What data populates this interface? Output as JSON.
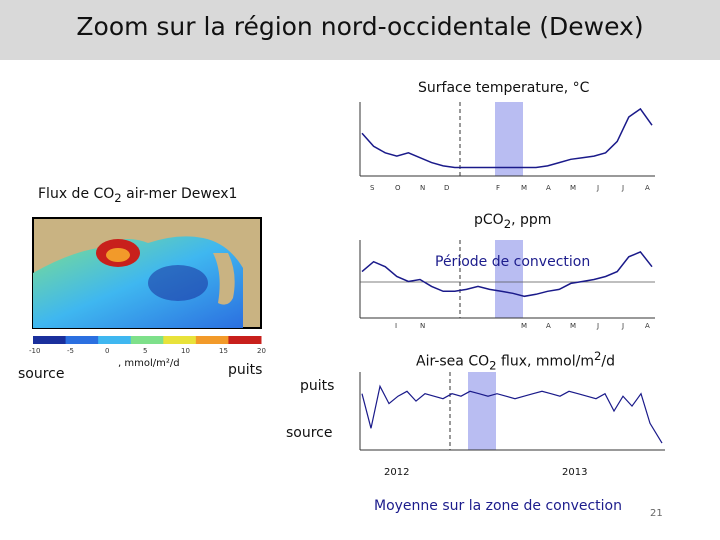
{
  "slide": {
    "title": "Zoom sur la région nord-occidentale (Dewex)",
    "page_number": "21"
  },
  "labels": {
    "sst_title": "Surface temperature, °C",
    "map_title_pre": "Flux de CO",
    "map_title_sub": "2",
    "map_title_post": " air-mer Dewex1",
    "pco2_title_pre": "pCO",
    "pco2_title_sub": "2",
    "pco2_title_post": ", ppm",
    "convection_label": "Période de convection",
    "flux_title_pre": "Air-sea CO",
    "flux_title_sub": "2",
    "flux_title_mid": " flux, mmol/m",
    "flux_title_sup": "2",
    "flux_title_post": "/d",
    "source_left": "source",
    "colorbar_unit": ", mmol/m²/d",
    "puits_left": "puits",
    "puits_mid": "puits",
    "source_mid": "source",
    "year_2012": "2012",
    "year_2013": "2013",
    "footer": "Moyenne sur la zone de convection"
  },
  "colors": {
    "series": "#1a1a8a",
    "convection_band": "#b9bdf2",
    "title_bar": "#d9d9d9",
    "footer_text": "#1c1c8c"
  },
  "chart_data": [
    {
      "type": "line",
      "name": "sst",
      "x": [
        0,
        4,
        8,
        12,
        16,
        20,
        24,
        28,
        32,
        36,
        40,
        44,
        48,
        52,
        56,
        60,
        64,
        68,
        72,
        76,
        80,
        84,
        88,
        92,
        96,
        100
      ],
      "values": [
        15,
        14.2,
        13.8,
        13.6,
        13.8,
        13.5,
        13.2,
        13.0,
        12.9,
        12.9,
        12.9,
        12.9,
        12.9,
        12.9,
        12.9,
        12.9,
        13.0,
        13.2,
        13.4,
        13.5,
        13.6,
        13.8,
        14.5,
        16.0,
        16.5,
        15.5
      ],
      "ylim": [
        12.5,
        16.8
      ],
      "band": [
        53,
        62
      ],
      "dashed_x": 34
    },
    {
      "type": "line",
      "name": "pco2",
      "x": [
        0,
        4,
        8,
        12,
        16,
        20,
        24,
        28,
        32,
        36,
        40,
        44,
        48,
        52,
        56,
        60,
        64,
        68,
        72,
        76,
        80,
        84,
        88,
        92,
        96,
        100
      ],
      "values": [
        420,
        430,
        425,
        415,
        410,
        412,
        405,
        400,
        400,
        402,
        405,
        402,
        400,
        398,
        395,
        397,
        400,
        402,
        408,
        410,
        412,
        415,
        420,
        435,
        440,
        425
      ],
      "ylim": [
        375,
        450
      ],
      "band": [
        53,
        62
      ],
      "dashed_x": 34
    },
    {
      "type": "line",
      "name": "flux",
      "x": [
        0,
        3,
        6,
        9,
        12,
        15,
        18,
        21,
        24,
        27,
        30,
        33,
        36,
        39,
        42,
        45,
        48,
        51,
        54,
        57,
        60,
        63,
        66,
        69,
        72,
        75,
        78,
        81,
        84,
        87,
        90,
        93,
        96,
        100
      ],
      "values": [
        2,
        -12,
        5,
        -2,
        1,
        3,
        -1,
        2,
        1,
        0,
        2,
        1,
        3,
        2,
        1,
        2,
        1,
        0,
        1,
        2,
        3,
        2,
        1,
        3,
        2,
        1,
        0,
        2,
        -5,
        1,
        -3,
        2,
        -10,
        -18
      ],
      "ylim": [
        -20,
        10
      ],
      "band": [
        53,
        62
      ],
      "dashed_x": 34
    },
    {
      "type": "heatmap",
      "name": "flux-map",
      "colorbar_ticks": [
        "-10",
        "-5",
        "0",
        "5",
        "10",
        "15",
        "20"
      ],
      "colorbar_colors": [
        "#1a2f9c",
        "#2b6fe0",
        "#3fb7f0",
        "#7ee08a",
        "#e8e23a",
        "#f29a2a",
        "#c8201c"
      ]
    }
  ]
}
